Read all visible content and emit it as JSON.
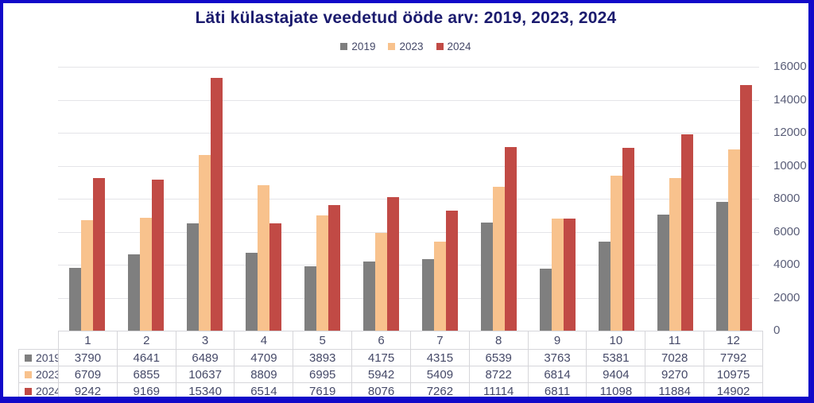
{
  "frame": {
    "border_color": "#1109c9",
    "background": "#ffffff"
  },
  "styles": {
    "title_color": "#1b1b6e",
    "text_color": "#454968",
    "ytick_color": "#5a5e78",
    "grid_color": "#e4e4e8",
    "table_border_color": "#d6d6da"
  },
  "chart_data": {
    "type": "bar",
    "title": "Läti külastajate veedetud ööde arv: 2019, 2023, 2024",
    "categories": [
      "1",
      "2",
      "3",
      "4",
      "5",
      "6",
      "7",
      "8",
      "9",
      "10",
      "11",
      "12"
    ],
    "series": [
      {
        "name": "2019",
        "color": "#7f7f7f",
        "values": [
          3790,
          4641,
          6489,
          4709,
          3893,
          4175,
          4315,
          6539,
          3763,
          5381,
          7028,
          7792
        ]
      },
      {
        "name": "2023",
        "color": "#f8c28d",
        "values": [
          6709,
          6855,
          10637,
          8809,
          6995,
          5942,
          5409,
          8722,
          6814,
          9404,
          9270,
          10975
        ]
      },
      {
        "name": "2024",
        "color": "#c14a45",
        "values": [
          9242,
          9169,
          15340,
          6514,
          7619,
          8076,
          7262,
          11114,
          6811,
          11098,
          11884,
          14902
        ]
      }
    ],
    "ylim": [
      0,
      16000
    ],
    "yticks": [
      0,
      2000,
      4000,
      6000,
      8000,
      10000,
      12000,
      14000,
      16000
    ],
    "grid": true,
    "legend_position": "top-center",
    "y_axis_side": "right",
    "data_table_shown": true
  }
}
